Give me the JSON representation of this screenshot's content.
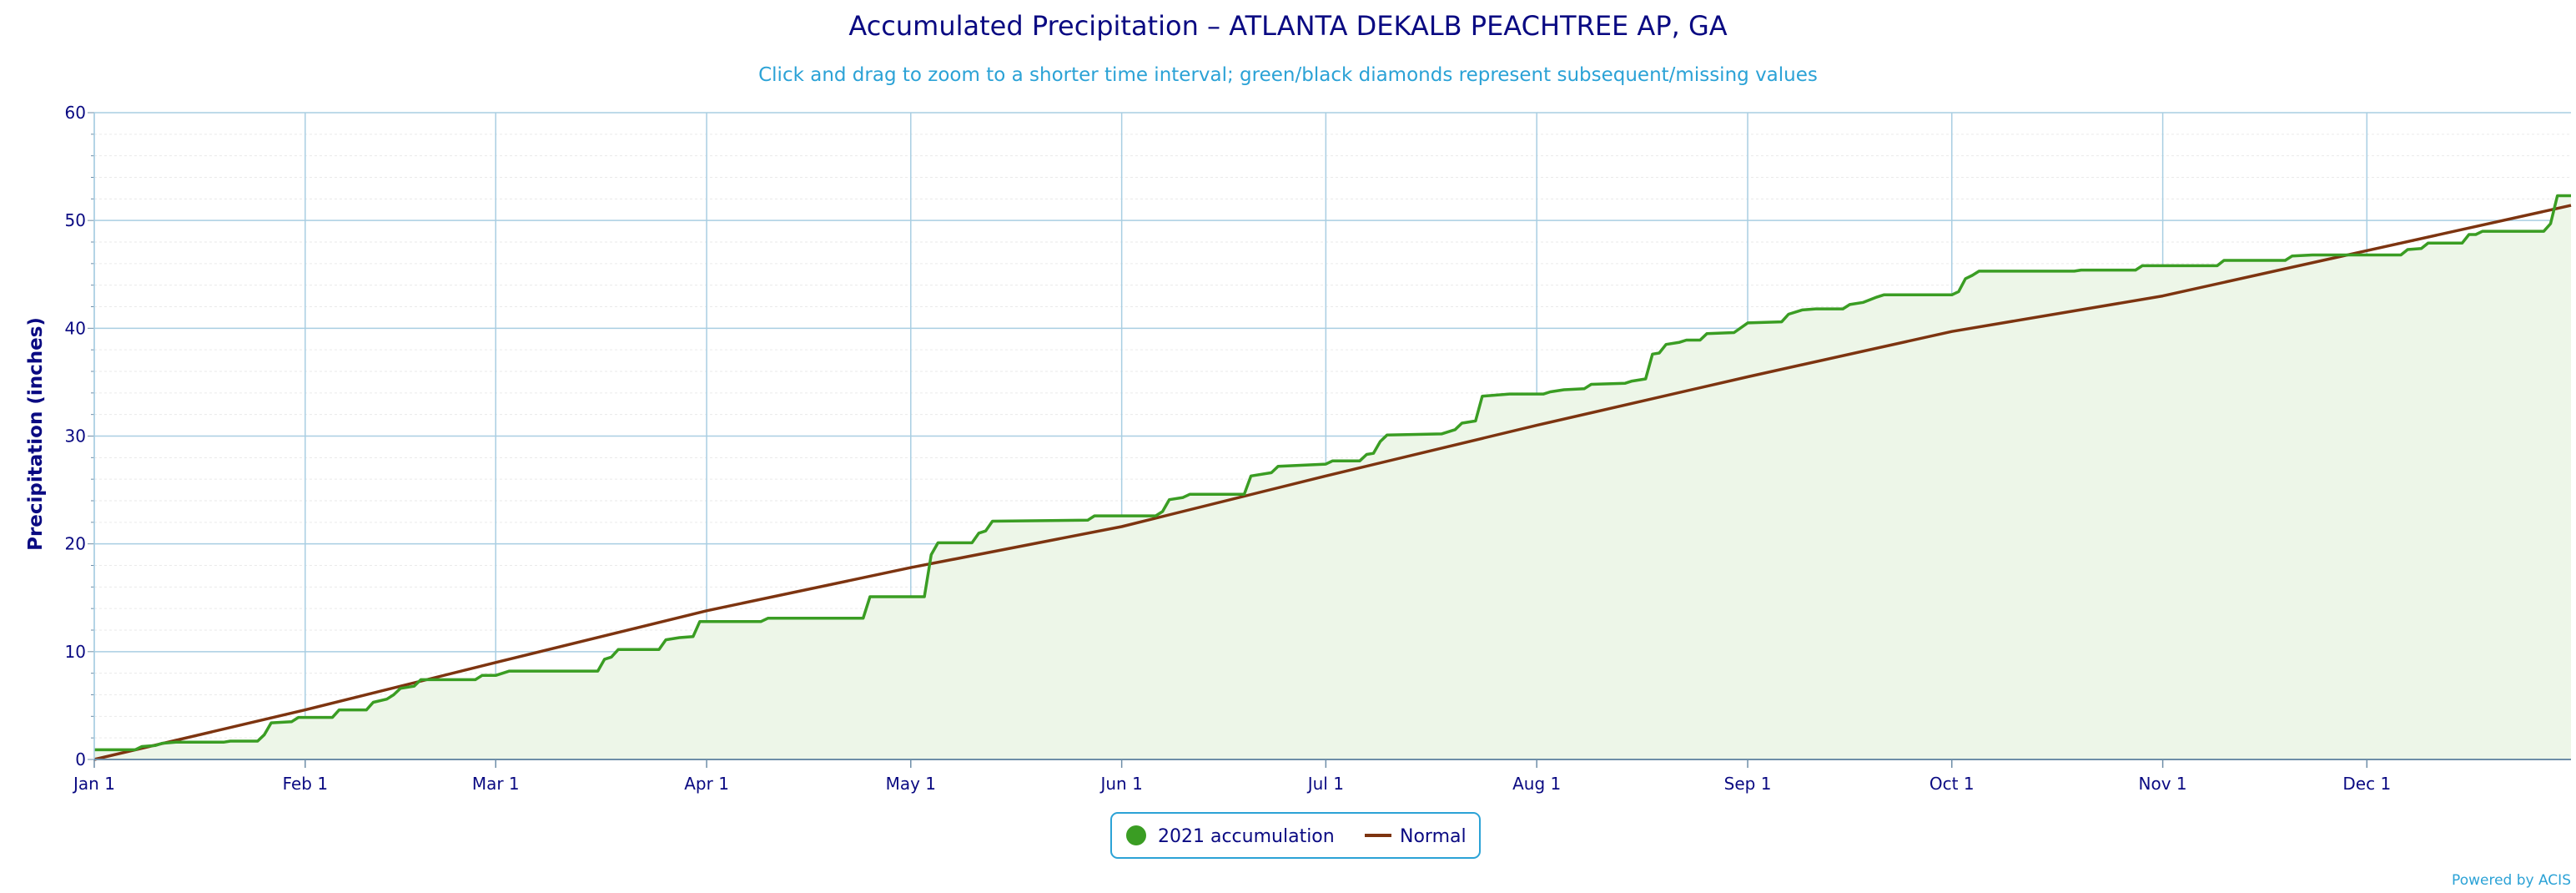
{
  "chart_data": {
    "type": "line",
    "title": "Accumulated Precipitation – ATLANTA DEKALB PEACHTREE AP, GA",
    "subtitle": "Click and drag to zoom to a shorter time interval; green/black diamonds represent subsequent/missing values",
    "ylabel": "Precipitation (inches)",
    "xlabel": "",
    "ylim": [
      0,
      60
    ],
    "yticks": [
      0,
      10,
      20,
      30,
      40,
      50,
      60
    ],
    "x_tick_labels": [
      {
        "label": "Jan 1",
        "day": 0
      },
      {
        "label": "Feb 1",
        "day": 31
      },
      {
        "label": "Mar 1",
        "day": 59
      },
      {
        "label": "Apr 1",
        "day": 90
      },
      {
        "label": "May 1",
        "day": 120
      },
      {
        "label": "Jun 1",
        "day": 151
      },
      {
        "label": "Jul 1",
        "day": 181
      },
      {
        "label": "Aug 1",
        "day": 212
      },
      {
        "label": "Sep 1",
        "day": 243
      },
      {
        "label": "Oct 1",
        "day": 273
      },
      {
        "label": "Nov 1",
        "day": 304
      },
      {
        "label": "Dec 1",
        "day": 334
      }
    ],
    "x_range_days": [
      0,
      364
    ],
    "grid": true,
    "legend_position": "bottom-center",
    "series": [
      {
        "name": "2021 accumulation",
        "color": "#3a9d23",
        "fill": "#edf6e8",
        "points": [
          [
            0,
            0.9
          ],
          [
            6,
            0.9
          ],
          [
            7,
            1.2
          ],
          [
            9,
            1.3
          ],
          [
            10,
            1.5
          ],
          [
            12,
            1.6
          ],
          [
            19,
            1.6
          ],
          [
            20,
            1.7
          ],
          [
            24,
            1.7
          ],
          [
            25,
            2.3
          ],
          [
            26,
            3.4
          ],
          [
            29,
            3.5
          ],
          [
            30,
            3.9
          ],
          [
            35,
            3.9
          ],
          [
            36,
            4.6
          ],
          [
            40,
            4.6
          ],
          [
            41,
            5.3
          ],
          [
            43,
            5.6
          ],
          [
            44,
            6.0
          ],
          [
            45,
            6.6
          ],
          [
            47,
            6.8
          ],
          [
            48,
            7.4
          ],
          [
            56,
            7.4
          ],
          [
            57,
            7.8
          ],
          [
            59,
            7.8
          ],
          [
            60,
            8.0
          ],
          [
            61,
            8.2
          ],
          [
            74,
            8.2
          ],
          [
            75,
            9.3
          ],
          [
            76,
            9.5
          ],
          [
            77,
            10.2
          ],
          [
            83,
            10.2
          ],
          [
            84,
            11.1
          ],
          [
            86,
            11.3
          ],
          [
            88,
            11.4
          ],
          [
            89,
            12.8
          ],
          [
            98,
            12.8
          ],
          [
            99,
            13.1
          ],
          [
            113,
            13.1
          ],
          [
            114,
            15.1
          ],
          [
            122,
            15.1
          ],
          [
            123,
            19.0
          ],
          [
            124,
            20.1
          ],
          [
            129,
            20.1
          ],
          [
            130,
            21.0
          ],
          [
            131,
            21.2
          ],
          [
            132,
            22.1
          ],
          [
            146,
            22.2
          ],
          [
            147,
            22.6
          ],
          [
            156,
            22.6
          ],
          [
            157,
            23.0
          ],
          [
            158,
            24.1
          ],
          [
            160,
            24.3
          ],
          [
            161,
            24.6
          ],
          [
            169,
            24.6
          ],
          [
            170,
            26.3
          ],
          [
            173,
            26.6
          ],
          [
            174,
            27.2
          ],
          [
            181,
            27.4
          ],
          [
            182,
            27.7
          ],
          [
            186,
            27.7
          ],
          [
            187,
            28.3
          ],
          [
            188,
            28.4
          ],
          [
            189,
            29.5
          ],
          [
            190,
            30.1
          ],
          [
            198,
            30.2
          ],
          [
            200,
            30.6
          ],
          [
            201,
            31.2
          ],
          [
            203,
            31.4
          ],
          [
            204,
            33.7
          ],
          [
            208,
            33.9
          ],
          [
            213,
            33.9
          ],
          [
            214,
            34.1
          ],
          [
            216,
            34.3
          ],
          [
            219,
            34.4
          ],
          [
            220,
            34.8
          ],
          [
            225,
            34.9
          ],
          [
            226,
            35.1
          ],
          [
            228,
            35.3
          ],
          [
            229,
            37.6
          ],
          [
            230,
            37.7
          ],
          [
            231,
            38.5
          ],
          [
            233,
            38.7
          ],
          [
            234,
            38.9
          ],
          [
            236,
            38.9
          ],
          [
            237,
            39.5
          ],
          [
            241,
            39.6
          ],
          [
            243,
            40.5
          ],
          [
            248,
            40.6
          ],
          [
            249,
            41.3
          ],
          [
            251,
            41.7
          ],
          [
            253,
            41.8
          ],
          [
            257,
            41.8
          ],
          [
            258,
            42.2
          ],
          [
            260,
            42.4
          ],
          [
            262,
            42.9
          ],
          [
            263,
            43.1
          ],
          [
            273,
            43.1
          ],
          [
            274,
            43.4
          ],
          [
            275,
            44.6
          ],
          [
            276,
            44.9
          ],
          [
            277,
            45.3
          ],
          [
            291,
            45.3
          ],
          [
            292,
            45.4
          ],
          [
            300,
            45.4
          ],
          [
            301,
            45.8
          ],
          [
            312,
            45.8
          ],
          [
            313,
            46.3
          ],
          [
            322,
            46.3
          ],
          [
            323,
            46.7
          ],
          [
            326,
            46.8
          ],
          [
            339,
            46.8
          ],
          [
            340,
            47.3
          ],
          [
            342,
            47.4
          ],
          [
            343,
            47.9
          ],
          [
            348,
            47.9
          ],
          [
            349,
            48.7
          ],
          [
            350,
            48.7
          ],
          [
            351,
            49.0
          ],
          [
            360,
            49.0
          ],
          [
            361,
            49.7
          ],
          [
            362,
            52.3
          ],
          [
            364,
            52.3
          ]
        ]
      },
      {
        "name": "Normal",
        "color": "#7d3410",
        "points": [
          [
            0,
            0.0
          ],
          [
            31,
            4.6
          ],
          [
            59,
            9.0
          ],
          [
            90,
            13.8
          ],
          [
            120,
            17.8
          ],
          [
            151,
            21.6
          ],
          [
            181,
            26.3
          ],
          [
            212,
            31.0
          ],
          [
            243,
            35.5
          ],
          [
            273,
            39.7
          ],
          [
            304,
            43.0
          ],
          [
            334,
            47.2
          ],
          [
            364,
            51.4
          ]
        ]
      }
    ],
    "credit": "Powered by ACIS"
  }
}
